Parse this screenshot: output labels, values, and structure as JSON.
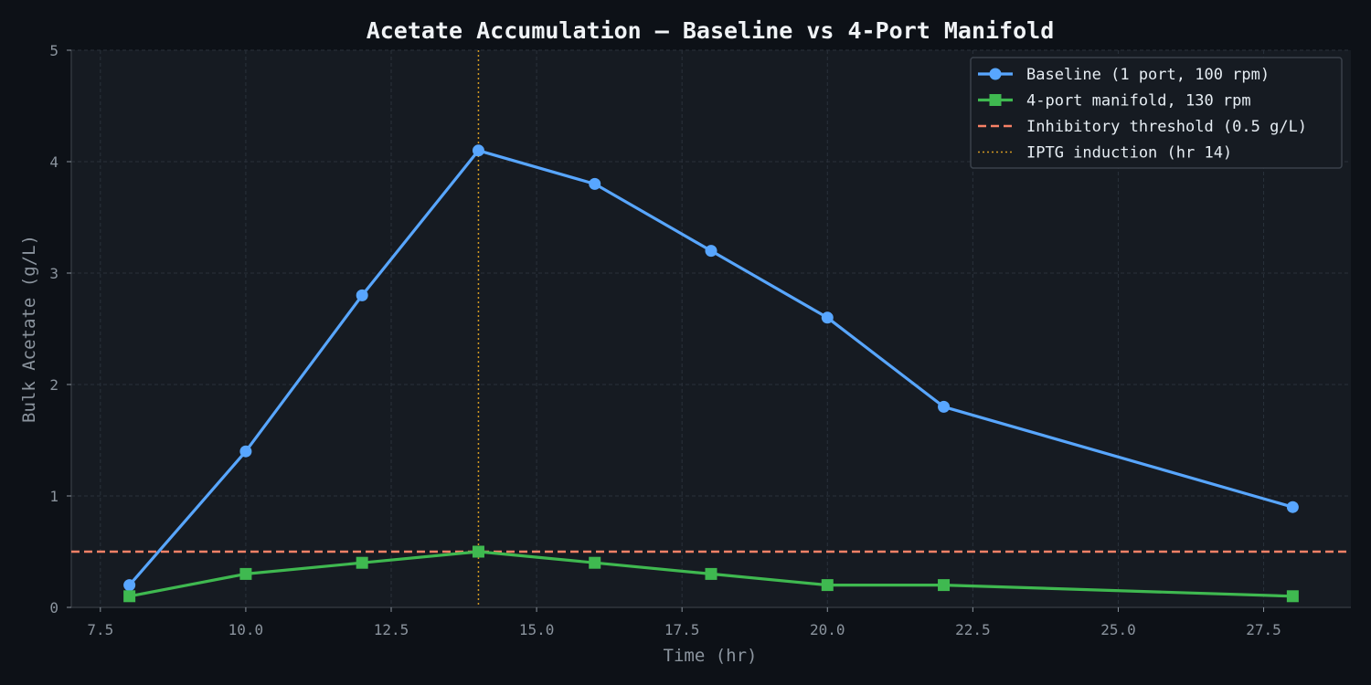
{
  "chart_data": {
    "type": "line",
    "title": "Acetate Accumulation — Baseline vs 4-Port Manifold",
    "xlabel": "Time (hr)",
    "ylabel": "Bulk Acetate (g/L)",
    "xlim": [
      7,
      29
    ],
    "ylim": [
      0,
      5
    ],
    "x_ticks": [
      7.5,
      10.0,
      12.5,
      15.0,
      17.5,
      20.0,
      22.5,
      25.0,
      27.5
    ],
    "x_tick_labels": [
      "7.5",
      "10.0",
      "12.5",
      "15.0",
      "17.5",
      "20.0",
      "22.5",
      "25.0",
      "27.5"
    ],
    "y_ticks": [
      0,
      1,
      2,
      3,
      4,
      5
    ],
    "y_tick_labels": [
      "0",
      "1",
      "2",
      "3",
      "4",
      "5"
    ],
    "grid": true,
    "legend_position": "top-right",
    "series": [
      {
        "name": "Baseline (1 port, 100 rpm)",
        "color": "#58a6ff",
        "marker": "circle",
        "x": [
          8,
          10,
          12,
          14,
          16,
          18,
          20,
          22,
          28
        ],
        "y": [
          0.2,
          1.4,
          2.8,
          4.1,
          3.8,
          3.2,
          2.6,
          1.8,
          0.9
        ]
      },
      {
        "name": "4-port manifold, 130 rpm",
        "color": "#3fb950",
        "marker": "square",
        "x": [
          8,
          10,
          12,
          14,
          16,
          18,
          20,
          22,
          28
        ],
        "y": [
          0.1,
          0.3,
          0.4,
          0.5,
          0.4,
          0.3,
          0.2,
          0.2,
          0.1
        ]
      }
    ],
    "reference_lines": [
      {
        "name": "Inhibitory threshold (0.5 g/L)",
        "orientation": "horizontal",
        "value": 0.5,
        "color": "#f78166",
        "style": "dashed"
      },
      {
        "name": "IPTG induction (hr 14)",
        "orientation": "vertical",
        "value": 14,
        "color": "#d29922",
        "style": "dotted"
      }
    ]
  }
}
